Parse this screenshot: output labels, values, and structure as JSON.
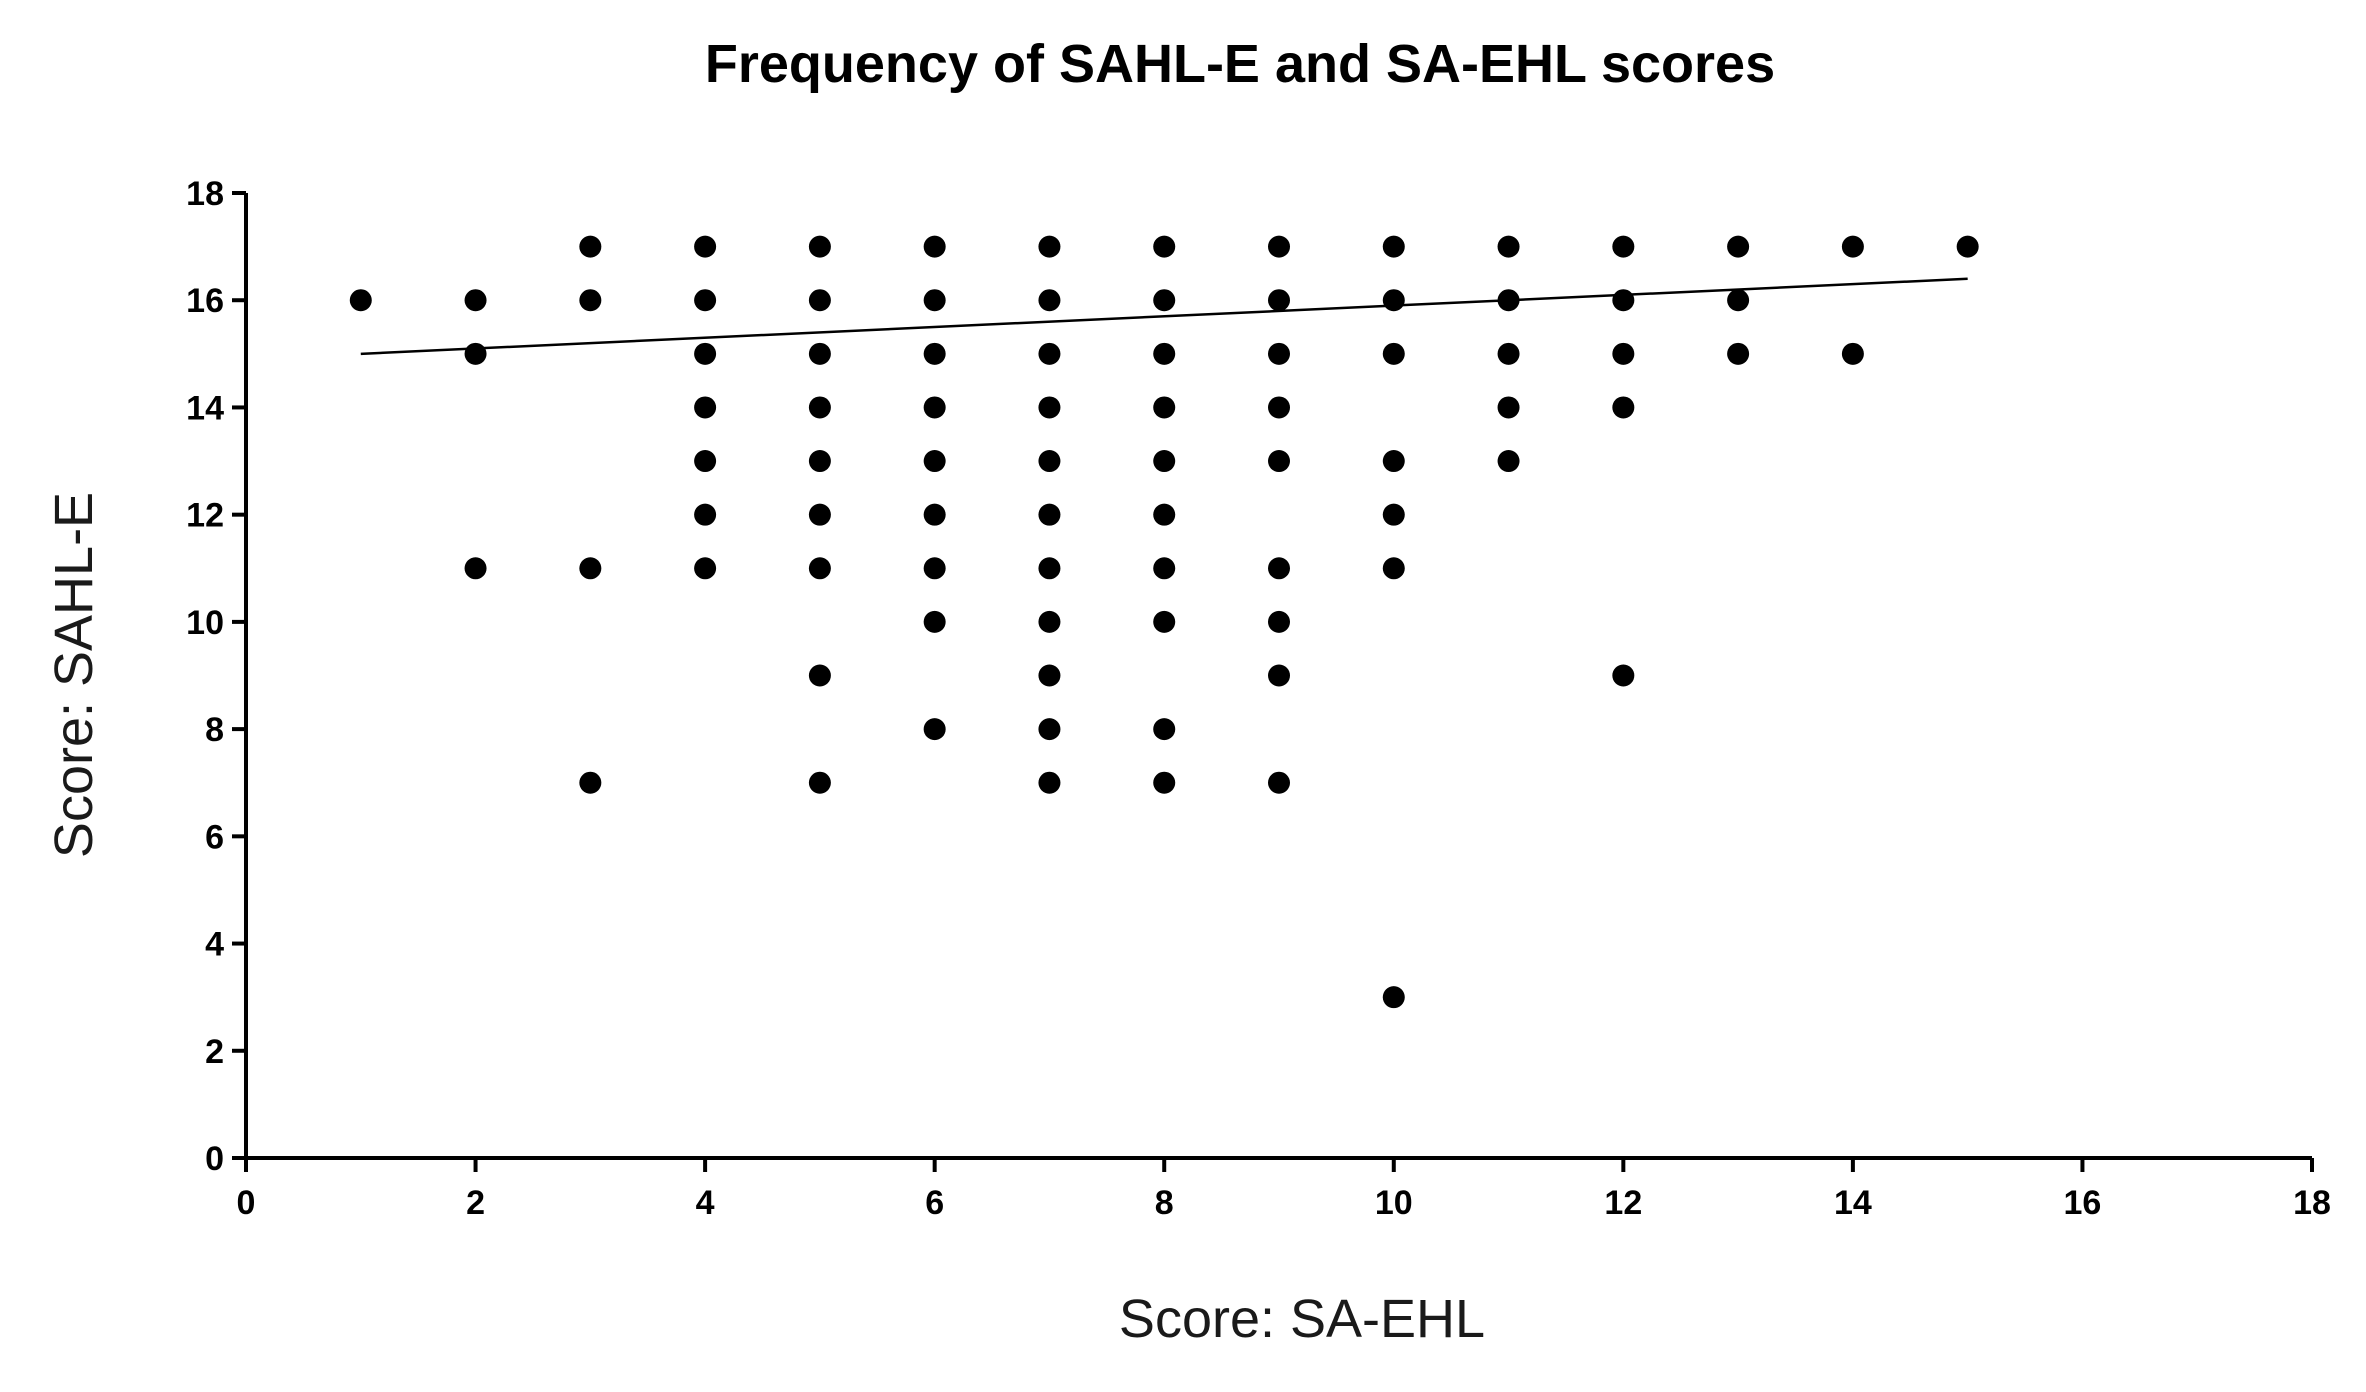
{
  "chart_data": {
    "type": "scatter",
    "title": "Frequency of SAHL-E and SA-EHL scores",
    "xlabel": "Score: SA-EHL",
    "ylabel": "Score: SAHL-E",
    "xlim": [
      0,
      18
    ],
    "ylim": [
      0,
      18
    ],
    "xticks": [
      0,
      2,
      4,
      6,
      8,
      10,
      12,
      14,
      16,
      18
    ],
    "yticks": [
      0,
      2,
      4,
      6,
      8,
      10,
      12,
      14,
      16,
      18
    ],
    "grid": false,
    "legend": "none",
    "marker_color": "#000000",
    "points": [
      {
        "x": 1,
        "y": 16
      },
      {
        "x": 2,
        "y": 16
      },
      {
        "x": 2,
        "y": 15
      },
      {
        "x": 2,
        "y": 11
      },
      {
        "x": 3,
        "y": 17
      },
      {
        "x": 3,
        "y": 16
      },
      {
        "x": 3,
        "y": 11
      },
      {
        "x": 3,
        "y": 7
      },
      {
        "x": 4,
        "y": 17
      },
      {
        "x": 4,
        "y": 16
      },
      {
        "x": 4,
        "y": 15
      },
      {
        "x": 4,
        "y": 14
      },
      {
        "x": 4,
        "y": 13
      },
      {
        "x": 4,
        "y": 12
      },
      {
        "x": 4,
        "y": 11
      },
      {
        "x": 5,
        "y": 17
      },
      {
        "x": 5,
        "y": 16
      },
      {
        "x": 5,
        "y": 15
      },
      {
        "x": 5,
        "y": 14
      },
      {
        "x": 5,
        "y": 13
      },
      {
        "x": 5,
        "y": 12
      },
      {
        "x": 5,
        "y": 11
      },
      {
        "x": 5,
        "y": 9
      },
      {
        "x": 5,
        "y": 7
      },
      {
        "x": 6,
        "y": 17
      },
      {
        "x": 6,
        "y": 16
      },
      {
        "x": 6,
        "y": 15
      },
      {
        "x": 6,
        "y": 14
      },
      {
        "x": 6,
        "y": 13
      },
      {
        "x": 6,
        "y": 12
      },
      {
        "x": 6,
        "y": 11
      },
      {
        "x": 6,
        "y": 10
      },
      {
        "x": 6,
        "y": 8
      },
      {
        "x": 7,
        "y": 17
      },
      {
        "x": 7,
        "y": 16
      },
      {
        "x": 7,
        "y": 15
      },
      {
        "x": 7,
        "y": 14
      },
      {
        "x": 7,
        "y": 13
      },
      {
        "x": 7,
        "y": 12
      },
      {
        "x": 7,
        "y": 11
      },
      {
        "x": 7,
        "y": 10
      },
      {
        "x": 7,
        "y": 9
      },
      {
        "x": 7,
        "y": 8
      },
      {
        "x": 7,
        "y": 7
      },
      {
        "x": 8,
        "y": 17
      },
      {
        "x": 8,
        "y": 16
      },
      {
        "x": 8,
        "y": 15
      },
      {
        "x": 8,
        "y": 14
      },
      {
        "x": 8,
        "y": 13
      },
      {
        "x": 8,
        "y": 12
      },
      {
        "x": 8,
        "y": 11
      },
      {
        "x": 8,
        "y": 10
      },
      {
        "x": 8,
        "y": 8
      },
      {
        "x": 8,
        "y": 7
      },
      {
        "x": 9,
        "y": 17
      },
      {
        "x": 9,
        "y": 16
      },
      {
        "x": 9,
        "y": 15
      },
      {
        "x": 9,
        "y": 14
      },
      {
        "x": 9,
        "y": 13
      },
      {
        "x": 9,
        "y": 11
      },
      {
        "x": 9,
        "y": 10
      },
      {
        "x": 9,
        "y": 9
      },
      {
        "x": 9,
        "y": 7
      },
      {
        "x": 10,
        "y": 17
      },
      {
        "x": 10,
        "y": 16
      },
      {
        "x": 10,
        "y": 15
      },
      {
        "x": 10,
        "y": 13
      },
      {
        "x": 10,
        "y": 12
      },
      {
        "x": 10,
        "y": 11
      },
      {
        "x": 10,
        "y": 3
      },
      {
        "x": 11,
        "y": 17
      },
      {
        "x": 11,
        "y": 16
      },
      {
        "x": 11,
        "y": 15
      },
      {
        "x": 11,
        "y": 14
      },
      {
        "x": 11,
        "y": 13
      },
      {
        "x": 12,
        "y": 17
      },
      {
        "x": 12,
        "y": 16
      },
      {
        "x": 12,
        "y": 15
      },
      {
        "x": 12,
        "y": 14
      },
      {
        "x": 12,
        "y": 9
      },
      {
        "x": 13,
        "y": 17
      },
      {
        "x": 13,
        "y": 16
      },
      {
        "x": 13,
        "y": 15
      },
      {
        "x": 14,
        "y": 17
      },
      {
        "x": 14,
        "y": 15
      },
      {
        "x": 15,
        "y": 17
      }
    ],
    "trendline": {
      "x": [
        1,
        15
      ],
      "y": [
        15.0,
        16.4
      ]
    }
  }
}
